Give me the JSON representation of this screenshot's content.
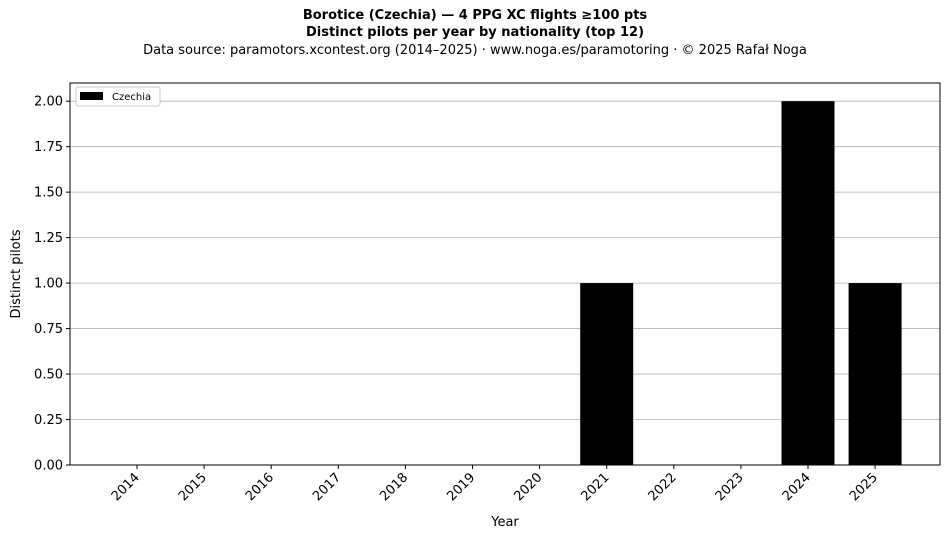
{
  "figure": {
    "title_line1": "Borotice (Czechia)  —  4 PPG XC flights ≥100 pts",
    "title_line2": "Distinct pilots per year by nationality (top 12)",
    "subtitle": "Data source: paramotors.xcontest.org (2014–2025)  ·  www.noga.es/paramotoring  ·  © 2025 Rafał Noga"
  },
  "chart_data": {
    "type": "bar",
    "categories": [
      "2014",
      "2015",
      "2016",
      "2017",
      "2018",
      "2019",
      "2020",
      "2021",
      "2022",
      "2023",
      "2024",
      "2025"
    ],
    "series": [
      {
        "name": "Czechia",
        "color": "#000000",
        "values": [
          0,
          0,
          0,
          0,
          0,
          0,
          0,
          1,
          0,
          0,
          2,
          1
        ]
      }
    ],
    "xlabel": "Year",
    "ylabel": "Distinct pilots",
    "ylim": [
      0,
      2.1
    ],
    "yticks": [
      "0.00",
      "0.25",
      "0.50",
      "0.75",
      "1.00",
      "1.25",
      "1.50",
      "1.75",
      "2.00"
    ],
    "grid": "horizontal",
    "legend_position": "top-left"
  }
}
